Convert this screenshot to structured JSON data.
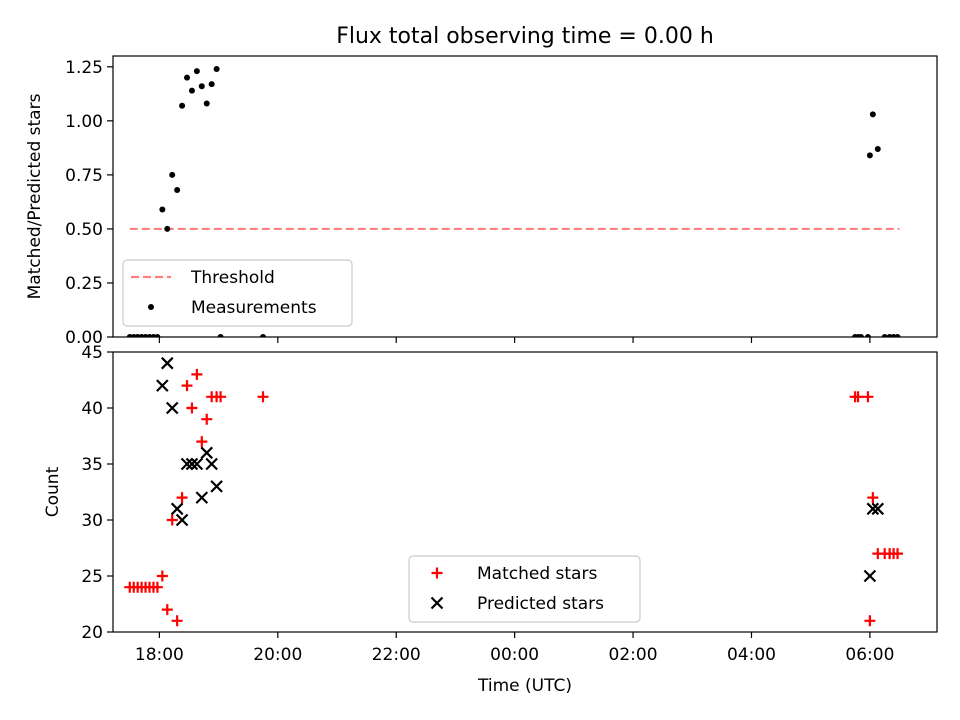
{
  "title": "Flux total observing time = 0.00 h",
  "chart_data": [
    {
      "type": "scatter",
      "ylabel": "Matched/Predicted stars",
      "xlabel": "",
      "ylim": [
        0,
        1.3
      ],
      "yticks": [
        "0.00",
        "0.25",
        "0.50",
        "0.75",
        "1.00",
        "1.25"
      ],
      "xlim": [
        "17:13",
        "07:08"
      ],
      "grid": false,
      "legend_position": "lower-left",
      "series": [
        {
          "name": "Threshold",
          "style": "dashed-line",
          "color": "#ff7f7f",
          "points": [
            [
              "17:30",
              0.5
            ],
            [
              "06:30",
              0.5
            ]
          ]
        },
        {
          "name": "Measurements",
          "style": "dot",
          "color": "#000000",
          "points": [
            [
              "17:30",
              0
            ],
            [
              "17:34",
              0
            ],
            [
              "17:38",
              0
            ],
            [
              "17:42",
              0
            ],
            [
              "17:46",
              0
            ],
            [
              "17:50",
              0
            ],
            [
              "17:54",
              0
            ],
            [
              "17:58",
              0
            ],
            [
              "18:03",
              0.59
            ],
            [
              "18:08",
              0.5
            ],
            [
              "18:13",
              0.75
            ],
            [
              "18:18",
              0.68
            ],
            [
              "18:23",
              1.07
            ],
            [
              "18:28",
              1.2
            ],
            [
              "18:33",
              1.14
            ],
            [
              "18:38",
              1.23
            ],
            [
              "18:43",
              1.16
            ],
            [
              "18:48",
              1.08
            ],
            [
              "18:53",
              1.17
            ],
            [
              "18:58",
              1.24
            ],
            [
              "19:02",
              0
            ],
            [
              "19:45",
              0
            ],
            [
              "05:45",
              0
            ],
            [
              "05:48",
              0
            ],
            [
              "05:51",
              0
            ],
            [
              "05:58",
              0
            ],
            [
              "06:00",
              0.84
            ],
            [
              "06:03",
              1.03
            ],
            [
              "06:08",
              0.87
            ],
            [
              "06:15",
              0
            ],
            [
              "06:20",
              0
            ],
            [
              "06:24",
              0
            ],
            [
              "06:28",
              0
            ]
          ]
        }
      ]
    },
    {
      "type": "scatter",
      "ylabel": "Count",
      "xlabel": "Time (UTC)",
      "ylim": [
        20,
        45
      ],
      "yticks": [
        "20",
        "25",
        "30",
        "35",
        "40",
        "45"
      ],
      "xlim": [
        "17:13",
        "07:08"
      ],
      "xticks": [
        "18:00",
        "20:00",
        "22:00",
        "00:00",
        "02:00",
        "04:00",
        "06:00"
      ],
      "grid": false,
      "legend_position": "lower-center",
      "series": [
        {
          "name": "Matched stars",
          "marker": "plus",
          "color": "#ff0000",
          "points": [
            [
              "17:30",
              24
            ],
            [
              "17:34",
              24
            ],
            [
              "17:38",
              24
            ],
            [
              "17:42",
              24
            ],
            [
              "17:46",
              24
            ],
            [
              "17:50",
              24
            ],
            [
              "17:54",
              24
            ],
            [
              "17:58",
              24
            ],
            [
              "18:03",
              25
            ],
            [
              "18:08",
              22
            ],
            [
              "18:13",
              30
            ],
            [
              "18:18",
              21
            ],
            [
              "18:23",
              32
            ],
            [
              "18:28",
              42
            ],
            [
              "18:33",
              40
            ],
            [
              "18:38",
              43
            ],
            [
              "18:43",
              37
            ],
            [
              "18:48",
              39
            ],
            [
              "18:53",
              41
            ],
            [
              "18:58",
              41
            ],
            [
              "19:02",
              41
            ],
            [
              "19:45",
              41
            ],
            [
              "05:45",
              41
            ],
            [
              "05:48",
              41
            ],
            [
              "05:58",
              41
            ],
            [
              "06:00",
              21
            ],
            [
              "06:03",
              32
            ],
            [
              "06:08",
              27
            ],
            [
              "06:15",
              27
            ],
            [
              "06:20",
              27
            ],
            [
              "06:24",
              27
            ],
            [
              "06:28",
              27
            ]
          ]
        },
        {
          "name": "Predicted stars",
          "marker": "x",
          "color": "#000000",
          "points": [
            [
              "18:03",
              42
            ],
            [
              "18:08",
              44
            ],
            [
              "18:13",
              40
            ],
            [
              "18:18",
              31
            ],
            [
              "18:23",
              30
            ],
            [
              "18:28",
              35
            ],
            [
              "18:33",
              35
            ],
            [
              "18:38",
              35
            ],
            [
              "18:43",
              32
            ],
            [
              "18:48",
              36
            ],
            [
              "18:53",
              35
            ],
            [
              "18:58",
              33
            ],
            [
              "06:00",
              25
            ],
            [
              "06:03",
              31
            ],
            [
              "06:08",
              31
            ]
          ]
        }
      ]
    }
  ]
}
